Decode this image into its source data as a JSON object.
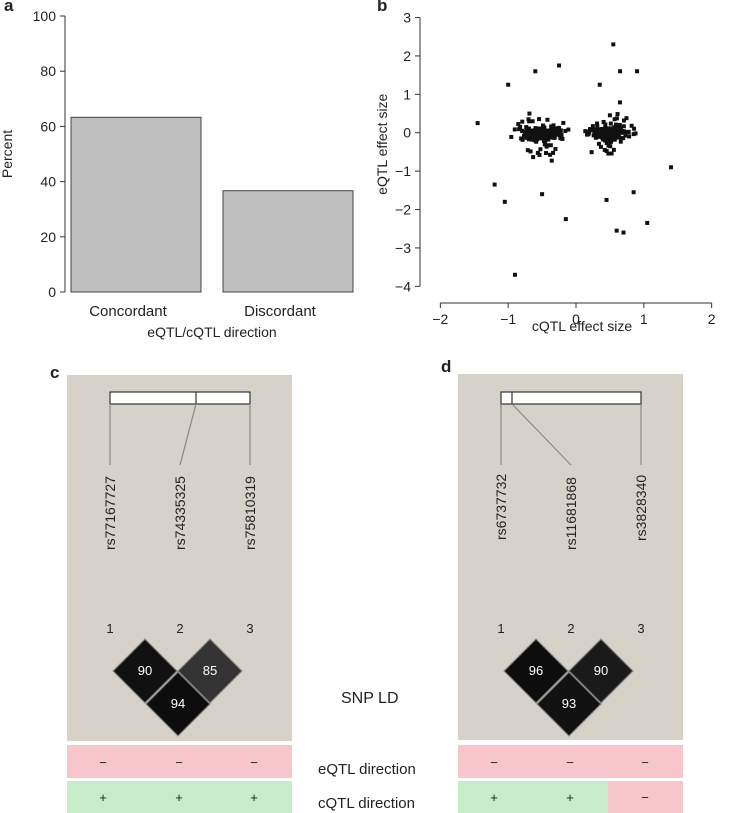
{
  "panels": {
    "a": {
      "letter": "a"
    },
    "b": {
      "letter": "b"
    },
    "c": {
      "letter": "c"
    },
    "d": {
      "letter": "d"
    }
  },
  "chart_data": [
    {
      "type": "bar",
      "panel": "a",
      "categories": [
        "Concordant",
        "Discordant"
      ],
      "values": [
        63.3,
        36.7
      ],
      "ylabel": "Percent",
      "xlabel": "eQTL/cQTL direction",
      "ylim": [
        0,
        100
      ],
      "yticks": [
        0,
        20,
        40,
        60,
        80,
        100
      ],
      "bar_color": "#bfbfbf"
    },
    {
      "type": "scatter",
      "panel": "b",
      "xlabel": "cQTL effect size",
      "ylabel": "eQTL effect size",
      "xlim": [
        -2.3,
        2.3
      ],
      "ylim": [
        -4.2,
        3.3
      ],
      "xticks": [
        -2,
        -1,
        0,
        1,
        2
      ],
      "yticks": [
        -4,
        -3,
        -2,
        -1,
        0,
        1,
        2,
        3
      ],
      "tick_labels_x": [
        "−2",
        "−1",
        "0",
        "1",
        "2"
      ],
      "tick_labels_y": [
        "−4",
        "−3",
        "−2",
        "−1",
        "0",
        "1",
        "2",
        "3"
      ],
      "point_color": "#111111",
      "outliers": [
        [
          0.55,
          2.3
        ],
        [
          -0.9,
          -3.7
        ],
        [
          0.6,
          -2.55
        ],
        [
          0.7,
          -2.6
        ],
        [
          1.05,
          -2.35
        ],
        [
          1.4,
          -0.9
        ],
        [
          -1.45,
          0.25
        ],
        [
          -1.05,
          -1.8
        ],
        [
          0.65,
          1.6
        ],
        [
          -1.0,
          1.25
        ],
        [
          -0.6,
          1.6
        ],
        [
          -0.25,
          1.75
        ],
        [
          0.35,
          1.25
        ],
        [
          -0.15,
          -2.25
        ],
        [
          0.45,
          -1.75
        ],
        [
          -0.5,
          -1.6
        ],
        [
          0.9,
          1.6
        ],
        [
          -1.2,
          -1.35
        ],
        [
          0.85,
          -1.55
        ]
      ]
    }
  ],
  "ld_panels": [
    {
      "letter": "c",
      "snps": [
        "rs77167727",
        "rs74335325",
        "rs75810319"
      ],
      "indices": [
        "1",
        "2",
        "3"
      ],
      "ld_values": [
        "90",
        "85",
        "94"
      ],
      "eqtl": [
        "−",
        "−",
        "−"
      ],
      "cqtl": [
        "+",
        "+",
        "+"
      ]
    },
    {
      "letter": "d",
      "snps": [
        "rs6737732",
        "rs11681868",
        "rs3828340"
      ],
      "indices": [
        "1",
        "2",
        "3"
      ],
      "ld_values": [
        "96",
        "90",
        "93"
      ],
      "eqtl": [
        "−",
        "−",
        "−"
      ],
      "cqtl": [
        "+",
        "+",
        "−"
      ]
    }
  ],
  "row_labels": {
    "snp_ld": "SNP LD",
    "eqtl_direction": "eQTL direction",
    "cqtl_direction": "cQTL direction"
  },
  "colors": {
    "ld_bg": "#d6d2ca",
    "neg_row": "#f7c6cb",
    "pos_row": "#c8ebc9",
    "diamond_dark": "#0d0d0d",
    "diamond_mid": "#333333"
  }
}
